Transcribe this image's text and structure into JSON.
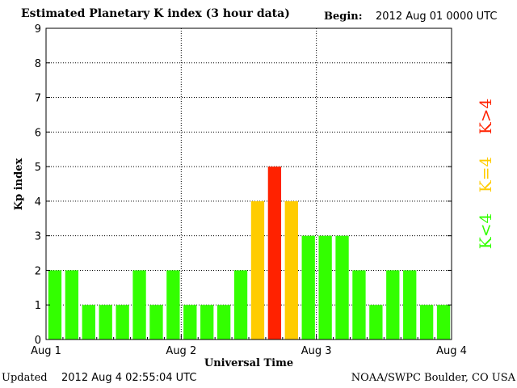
{
  "header": {
    "title": "Estimated Planetary K index (3 hour data)",
    "begin_label": "Begin:",
    "begin_value": "2012 Aug 01 0000 UTC"
  },
  "footer": {
    "updated_label": "Updated",
    "updated_value": "2012 Aug  4 02:55:04 UTC",
    "credit": "NOAA/SWPC Boulder, CO USA"
  },
  "chart_data": {
    "type": "bar",
    "title": "Estimated Planetary K index (3 hour data)",
    "xlabel": "Universal Time",
    "ylabel": "Kp index",
    "ylim": [
      0,
      9
    ],
    "yticks": [
      0,
      1,
      2,
      3,
      4,
      5,
      6,
      7,
      8,
      9
    ],
    "x_tick_labels": [
      "Aug 1",
      "Aug 2",
      "Aug 3",
      "Aug 4"
    ],
    "grid": true,
    "values": [
      2,
      2,
      1,
      1,
      1,
      2,
      1,
      2,
      1,
      1,
      1,
      2,
      4,
      5,
      4,
      3,
      3,
      3,
      2,
      1,
      2,
      2,
      1,
      1
    ],
    "colors": {
      "below": "#33ff00",
      "equal": "#ffcc00",
      "above": "#ff2200"
    },
    "legend": {
      "placement": "right",
      "entries": [
        {
          "label": "K<4",
          "color": "#33ff00"
        },
        {
          "label": "K=4",
          "color": "#ffcc00"
        },
        {
          "label": "K>4",
          "color": "#ff2200"
        }
      ]
    }
  }
}
